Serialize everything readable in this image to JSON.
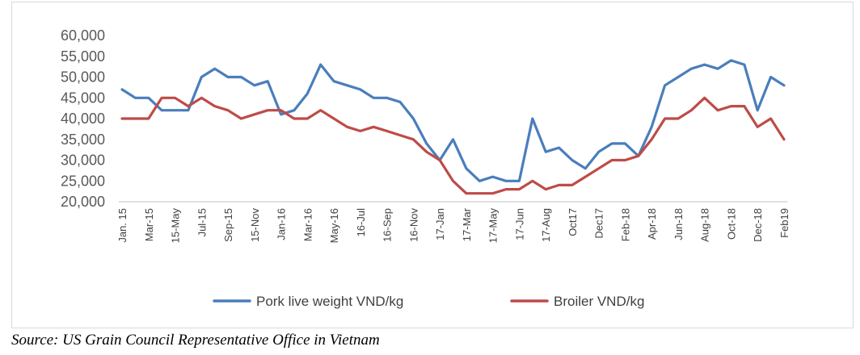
{
  "chart_data": {
    "type": "line",
    "title": "",
    "xlabel": "",
    "ylabel": "",
    "ylim": [
      20000,
      60000
    ],
    "yticks": [
      "20,000",
      "25,000",
      "30,000",
      "35,000",
      "40,000",
      "45,000",
      "50,000",
      "55,000",
      "60,000"
    ],
    "x_tick_labels": [
      "Jan. 15",
      "Mar-15",
      "15-May",
      "Jul-15",
      "Sep-15",
      "15-Nov",
      "Jan-16",
      "Mar-16",
      "May-16",
      "16-Jul",
      "16-Sep",
      "16-Nov",
      "17-Jan",
      "17-Mar",
      "17-May",
      "17-Jun",
      "17-Aug",
      "Oct17",
      "Dec17",
      "Feb-18",
      "Apr-18",
      "Jun-18",
      "Aug-18",
      "Oct-18",
      "Dec-18",
      "Feb19"
    ],
    "grid": false,
    "legend_position": "bottom",
    "series": [
      {
        "name": "Pork live weight VND/kg",
        "color": "#4a7ebb",
        "values": [
          47000,
          45000,
          45000,
          42000,
          42000,
          42000,
          50000,
          52000,
          50000,
          50000,
          48000,
          49000,
          41000,
          42000,
          46000,
          53000,
          49000,
          48000,
          47000,
          45000,
          45000,
          44000,
          40000,
          34000,
          30000,
          35000,
          28000,
          25000,
          26000,
          25000,
          25000,
          40000,
          32000,
          33000,
          30000,
          28000,
          32000,
          34000,
          34000,
          31000,
          38000,
          48000,
          50000,
          52000,
          53000,
          52000,
          54000,
          53000,
          42000,
          50000,
          48000
        ]
      },
      {
        "name": "Broiler VND/kg",
        "color": "#be4b48",
        "values": [
          40000,
          40000,
          40000,
          45000,
          45000,
          43000,
          45000,
          43000,
          42000,
          40000,
          41000,
          42000,
          42000,
          40000,
          40000,
          42000,
          40000,
          38000,
          37000,
          38000,
          37000,
          36000,
          35000,
          32000,
          30000,
          25000,
          22000,
          22000,
          22000,
          23000,
          23000,
          25000,
          23000,
          24000,
          24000,
          26000,
          28000,
          30000,
          30000,
          31000,
          35000,
          40000,
          40000,
          42000,
          45000,
          42000,
          43000,
          43000,
          38000,
          40000,
          35000
        ]
      }
    ]
  },
  "source": "Source: US Grain Council Representative Office in Vietnam"
}
